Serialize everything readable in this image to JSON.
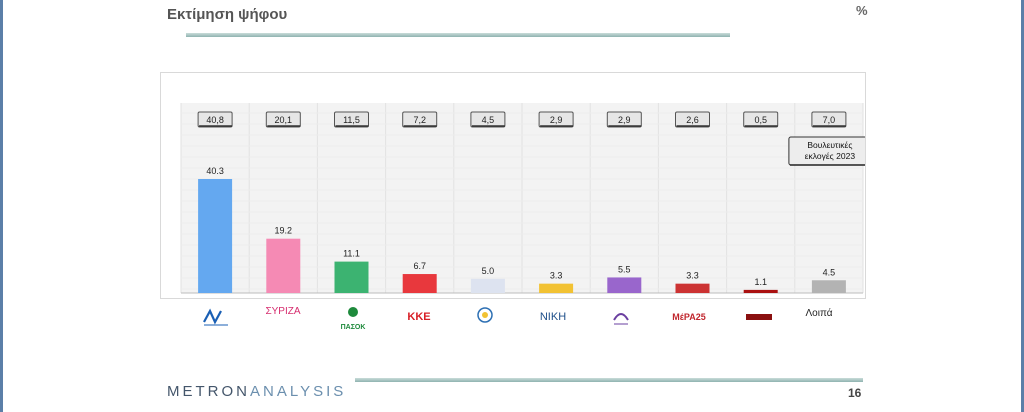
{
  "header": {
    "title": "Εκτίμηση ψήφου",
    "unit": "%"
  },
  "chart_data": {
    "type": "bar",
    "categories": [
      "ΝΔ",
      "ΣΥΡΙΖΑ",
      "ΠΑΣΟΚ",
      "ΚΚΕ",
      "ΕΛΛΗΝΙΚΗ ΛΥΣΗ",
      "ΝΙΚΗ",
      "Πλεύση Ελευθερίας",
      "ΜέΡΑ25",
      "Σπαρτιάτες",
      "Λοιπά"
    ],
    "values": [
      40.3,
      19.2,
      11.1,
      6.7,
      5.0,
      3.3,
      5.5,
      3.3,
      1.1,
      4.5
    ],
    "value_labels": [
      "40.3",
      "19.2",
      "11.1",
      "6.7",
      "5.0",
      "3.3",
      "5.5",
      "3.3",
      "1.1",
      "4.5"
    ],
    "reference_labels": [
      "40,8",
      "20,1",
      "11,5",
      "7,2",
      "4,5",
      "2,9",
      "2,9",
      "2,6",
      "0,5",
      "7,0"
    ],
    "reference_note": "Βουλευτικές εκλογές 2023",
    "colors": [
      "#64a8f0",
      "#f58ab4",
      "#3cb371",
      "#e8383d",
      "#dde3f0",
      "#f2c233",
      "#9966cc",
      "#cc3333",
      "#aa1111",
      "#b3b3b3"
    ],
    "ylim": [
      0,
      50
    ],
    "grid": true
  },
  "legend": {
    "logos": [
      {
        "icon": "nd-logo-icon",
        "text": "ΝΔ",
        "color": "#1a5fb4"
      },
      {
        "icon": "syriza-logo-icon",
        "text": "ΣΥΡΙΖΑ",
        "color": "#d62d6e"
      },
      {
        "icon": "pasok-logo-icon",
        "text": "ΠΑΣΟΚ",
        "color": "#1e8a3c"
      },
      {
        "icon": "kke-logo-icon",
        "text": "ΚΚΕ",
        "color": "#d81f26"
      },
      {
        "icon": "elliniki-lysi-logo-icon",
        "text": "",
        "color": "#2c6fb3"
      },
      {
        "icon": "niki-logo-icon",
        "text": "ΝΙΚΗ",
        "color": "#1d4e89"
      },
      {
        "icon": "plefsi-logo-icon",
        "text": "",
        "color": "#6a3fa0"
      },
      {
        "icon": "mera25-logo-icon",
        "text": "ΜέΡΑ25",
        "color": "#c0262d"
      },
      {
        "icon": "spartiates-logo-icon",
        "text": "",
        "color": "#8a1010"
      }
    ],
    "others_label": "Λοιπά"
  },
  "footer": {
    "brand_a": "METRON",
    "brand_b": "ANALYSIS",
    "page_number": "16"
  }
}
